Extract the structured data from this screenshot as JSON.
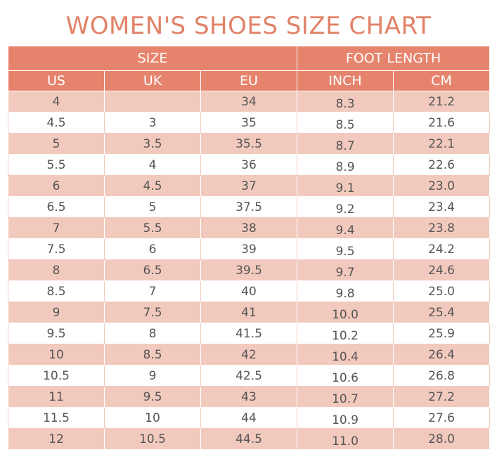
{
  "title": "WOMEN'S SHOES SIZE CHART",
  "groups": {
    "size": "SIZE",
    "foot_length": "FOOT LENGTH"
  },
  "columns": [
    "US",
    "UK",
    "EU",
    "INCH",
    "CM"
  ],
  "rows": [
    [
      "4",
      "",
      "34",
      "8.3",
      "21.2"
    ],
    [
      "4.5",
      "3",
      "35",
      "8.5",
      "21.6"
    ],
    [
      "5",
      "3.5",
      "35.5",
      "8.7",
      "22.1"
    ],
    [
      "5.5",
      "4",
      "36",
      "8.9",
      "22.6"
    ],
    [
      "6",
      "4.5",
      "37",
      "9.1",
      "23.0"
    ],
    [
      "6.5",
      "5",
      "37.5",
      "9.2",
      "23.4"
    ],
    [
      "7",
      "5.5",
      "38",
      "9.4",
      "23.8"
    ],
    [
      "7.5",
      "6",
      "39",
      "9.5",
      "24.2"
    ],
    [
      "8",
      "6.5",
      "39.5",
      "9.7",
      "24.6"
    ],
    [
      "8.5",
      "7",
      "40",
      "9.8",
      "25.0"
    ],
    [
      "9",
      "7.5",
      "41",
      "10.0",
      "25.4"
    ],
    [
      "9.5",
      "8",
      "41.5",
      "10.2",
      "25.9"
    ],
    [
      "10",
      "8.5",
      "42",
      "10.4",
      "26.4"
    ],
    [
      "10.5",
      "9",
      "42.5",
      "10.6",
      "26.8"
    ],
    [
      "11",
      "9.5",
      "43",
      "10.7",
      "27.2"
    ],
    [
      "11.5",
      "10",
      "44",
      "10.9",
      "27.6"
    ],
    [
      "12",
      "10.5",
      "44.5",
      "11.0",
      "28.0"
    ]
  ],
  "colors": {
    "accent": "#e6836c",
    "title": "#e18268",
    "stripe": "#f2cabd",
    "text": "#555555"
  }
}
